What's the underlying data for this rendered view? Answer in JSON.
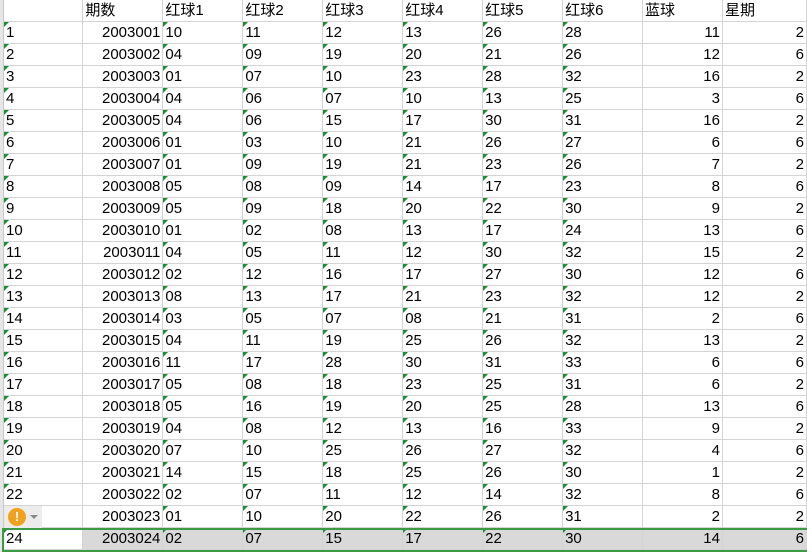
{
  "columns": [
    "",
    "期数",
    "红球1",
    "红球2",
    "红球3",
    "红球4",
    "红球5",
    "红球6",
    "蓝球",
    "星期"
  ],
  "rows": [
    [
      "1",
      "2003001",
      "10",
      "11",
      "12",
      "13",
      "26",
      "28",
      "11",
      "2"
    ],
    [
      "2",
      "2003002",
      "04",
      "09",
      "19",
      "20",
      "21",
      "26",
      "12",
      "6"
    ],
    [
      "3",
      "2003003",
      "01",
      "07",
      "10",
      "23",
      "28",
      "32",
      "16",
      "2"
    ],
    [
      "4",
      "2003004",
      "04",
      "06",
      "07",
      "10",
      "13",
      "25",
      "3",
      "6"
    ],
    [
      "5",
      "2003005",
      "04",
      "06",
      "15",
      "17",
      "30",
      "31",
      "16",
      "2"
    ],
    [
      "6",
      "2003006",
      "01",
      "03",
      "10",
      "21",
      "26",
      "27",
      "6",
      "6"
    ],
    [
      "7",
      "2003007",
      "01",
      "09",
      "19",
      "21",
      "23",
      "26",
      "7",
      "2"
    ],
    [
      "8",
      "2003008",
      "05",
      "08",
      "09",
      "14",
      "17",
      "23",
      "8",
      "6"
    ],
    [
      "9",
      "2003009",
      "05",
      "09",
      "18",
      "20",
      "22",
      "30",
      "9",
      "2"
    ],
    [
      "10",
      "2003010",
      "01",
      "02",
      "08",
      "13",
      "17",
      "24",
      "13",
      "6"
    ],
    [
      "11",
      "2003011",
      "04",
      "05",
      "11",
      "12",
      "30",
      "32",
      "15",
      "2"
    ],
    [
      "12",
      "2003012",
      "02",
      "12",
      "16",
      "17",
      "27",
      "30",
      "12",
      "6"
    ],
    [
      "13",
      "2003013",
      "08",
      "13",
      "17",
      "21",
      "23",
      "32",
      "12",
      "2"
    ],
    [
      "14",
      "2003014",
      "03",
      "05",
      "07",
      "08",
      "21",
      "31",
      "2",
      "6"
    ],
    [
      "15",
      "2003015",
      "04",
      "11",
      "19",
      "25",
      "26",
      "32",
      "13",
      "2"
    ],
    [
      "16",
      "2003016",
      "11",
      "17",
      "28",
      "30",
      "31",
      "33",
      "6",
      "6"
    ],
    [
      "17",
      "2003017",
      "05",
      "08",
      "18",
      "23",
      "25",
      "31",
      "6",
      "2"
    ],
    [
      "18",
      "2003018",
      "05",
      "16",
      "19",
      "20",
      "25",
      "28",
      "13",
      "6"
    ],
    [
      "19",
      "2003019",
      "04",
      "08",
      "12",
      "13",
      "16",
      "33",
      "9",
      "2"
    ],
    [
      "20",
      "2003020",
      "07",
      "10",
      "25",
      "26",
      "27",
      "32",
      "4",
      "6"
    ],
    [
      "21",
      "2003021",
      "14",
      "15",
      "18",
      "25",
      "26",
      "30",
      "1",
      "2"
    ],
    [
      "22",
      "2003022",
      "02",
      "07",
      "11",
      "12",
      "14",
      "32",
      "8",
      "6"
    ],
    [
      "",
      "2003023",
      "01",
      "10",
      "20",
      "22",
      "26",
      "31",
      "2",
      "2"
    ],
    [
      "24",
      "2003024",
      "02",
      "07",
      "15",
      "17",
      "22",
      "30",
      "14",
      "6"
    ]
  ],
  "selected_row": 24,
  "warning_icon": "exclamation-warning-icon",
  "warning_glyph": "!",
  "colors": {
    "selection": "#3c9a45",
    "text_marker": "#1e8a3c",
    "warning": "#f0a21e"
  }
}
